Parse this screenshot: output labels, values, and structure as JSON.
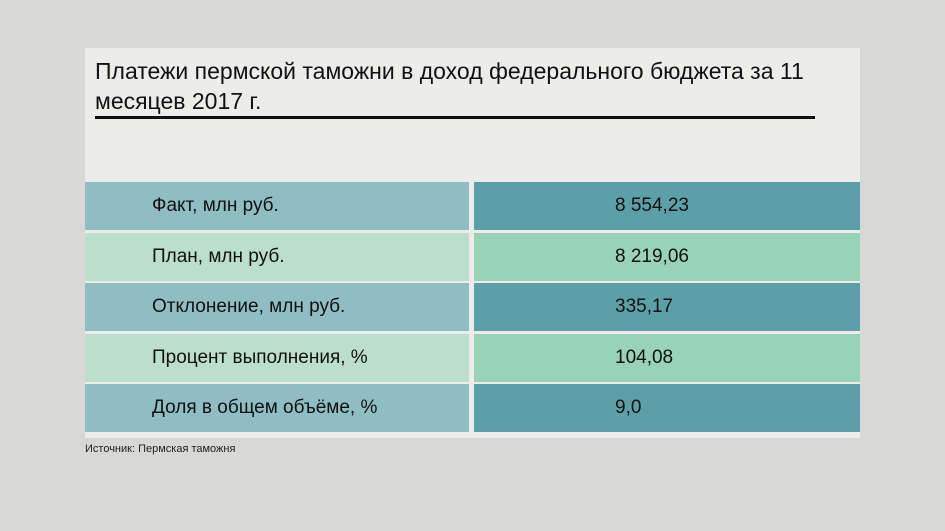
{
  "header": {
    "title": "Платежи пермской таможни в доход федерального бюджета за 11 месяцев 2017 г."
  },
  "table": {
    "rows": [
      [
        "Факт, млн руб.",
        "8 554,23"
      ],
      [
        "План, млн руб.",
        "8 219,06"
      ],
      [
        "Отклонение, млн руб.",
        "335,17"
      ],
      [
        "Процент выполнения, %",
        "104,08"
      ],
      [
        "Доля в общем объёме, %",
        "9,0"
      ]
    ]
  },
  "footer": {
    "source": "Источник: Пермская таможня"
  }
}
